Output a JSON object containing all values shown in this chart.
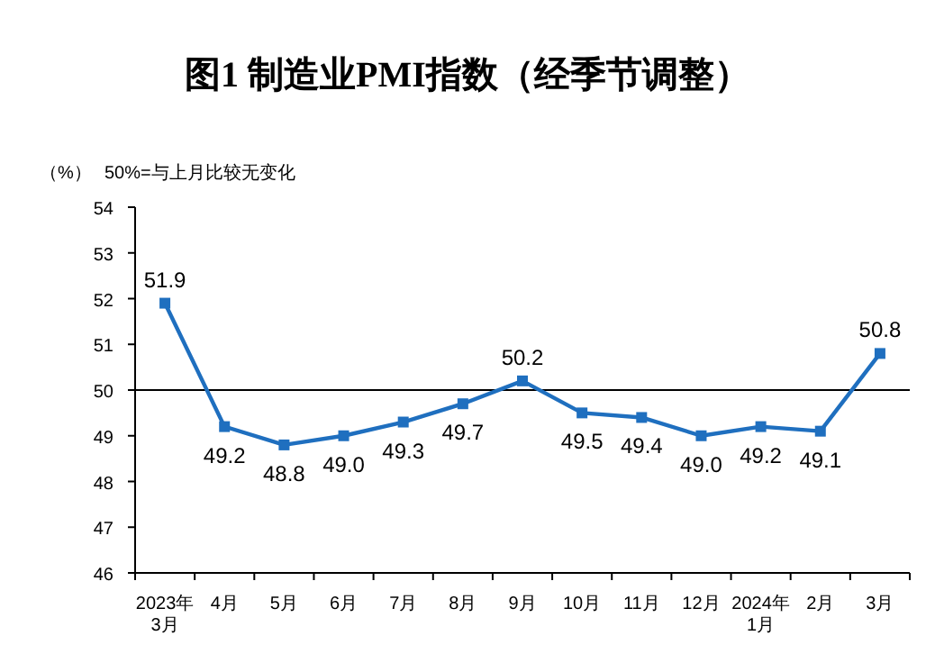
{
  "chart_data": {
    "type": "line",
    "title": "图1  制造业PMI指数（经季节调整）",
    "ylabel": "（%）",
    "annotations": [
      "50%=与上月比较无变化"
    ],
    "categories": [
      "2023年\n3月",
      "4月",
      "5月",
      "6月",
      "7月",
      "8月",
      "9月",
      "10月",
      "11月",
      "12月",
      "2024年\n1月",
      "2月",
      "3月"
    ],
    "series": [
      {
        "color": "#1f6fbf",
        "values": [
          51.9,
          49.2,
          48.8,
          49.0,
          49.3,
          49.7,
          50.2,
          49.5,
          49.4,
          49.0,
          49.2,
          49.1,
          50.8
        ],
        "value_labels": [
          "51.9",
          "49.2",
          "48.8",
          "49.0",
          "49.3",
          "49.7",
          "50.2",
          "49.5",
          "49.4",
          "49.0",
          "49.2",
          "49.1",
          "50.8"
        ]
      }
    ],
    "ylim": [
      46,
      54
    ],
    "yticks": [
      46,
      47,
      48,
      49,
      50,
      51,
      52,
      53,
      54
    ],
    "ref_lines": [
      {
        "axis": "y",
        "value": 50,
        "color": "#000000"
      }
    ],
    "marker": "square",
    "line_style": "solid"
  }
}
